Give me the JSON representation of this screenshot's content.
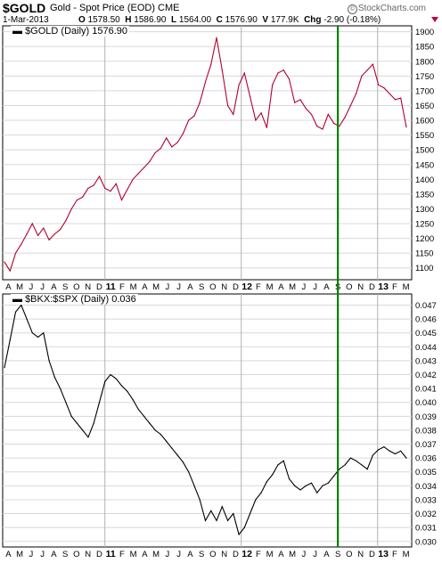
{
  "header": {
    "symbol": "$GOLD",
    "name": "Gold - Spot Price (EOD)",
    "exchange": "CME",
    "date": "1-Mar-2013",
    "open_label": "O",
    "open": "1578.50",
    "high_label": "H",
    "high": "1586.90",
    "low_label": "L",
    "low": "1564.00",
    "close_label": "C",
    "close": "1576.90",
    "volume_label": "V",
    "volume": "177.9K",
    "change_label": "Chg",
    "change": "-2.90 (-0.18%)",
    "brand": "StockCharts.com",
    "down_color": "#c0003c"
  },
  "x_axis": {
    "ticks": [
      "A",
      "M",
      "J",
      "J",
      "A",
      "S",
      "O",
      "N",
      "D",
      "11",
      "F",
      "M",
      "A",
      "M",
      "J",
      "J",
      "A",
      "S",
      "O",
      "N",
      "D",
      "12",
      "F",
      "M",
      "A",
      "M",
      "J",
      "J",
      "A",
      "S",
      "O",
      "N",
      "D",
      "13",
      "F",
      "M"
    ],
    "year_ticks": [
      "11",
      "12",
      "13"
    ]
  },
  "marker": {
    "color": "#008000",
    "month_index": 29
  },
  "chart_data": [
    {
      "type": "line",
      "title": "$GOLD (Daily) 1576.90",
      "series": [
        {
          "name": "$GOLD",
          "color": "#b00030"
        }
      ],
      "x": [
        0,
        1,
        2,
        3,
        4,
        5,
        6,
        7,
        8,
        9,
        10,
        11,
        12,
        13,
        14,
        15,
        16,
        17,
        18,
        19,
        20,
        21,
        22,
        23,
        24,
        25,
        26,
        27,
        28,
        29,
        30,
        31,
        32,
        33,
        34,
        35,
        36,
        37,
        38,
        39,
        40,
        41,
        42,
        43,
        44,
        45,
        46,
        47,
        48,
        49,
        50,
        51,
        52,
        53,
        54,
        55,
        56,
        57,
        58,
        59,
        60,
        61,
        62,
        63,
        64,
        65,
        66,
        67,
        68,
        69,
        70,
        71,
        72
      ],
      "x_unit": "half-months from Apr 2010",
      "values": [
        1120,
        1090,
        1150,
        1180,
        1215,
        1250,
        1210,
        1235,
        1195,
        1215,
        1230,
        1260,
        1300,
        1330,
        1340,
        1370,
        1380,
        1410,
        1370,
        1360,
        1385,
        1330,
        1365,
        1400,
        1420,
        1440,
        1460,
        1490,
        1505,
        1540,
        1510,
        1525,
        1555,
        1600,
        1615,
        1660,
        1730,
        1790,
        1880,
        1770,
        1650,
        1620,
        1720,
        1760,
        1680,
        1600,
        1625,
        1575,
        1720,
        1760,
        1770,
        1740,
        1660,
        1670,
        1640,
        1620,
        1580,
        1570,
        1620,
        1590,
        1580,
        1610,
        1650,
        1690,
        1750,
        1770,
        1790,
        1720,
        1710,
        1690,
        1670,
        1675,
        1577
      ],
      "ylim": [
        1060,
        1920
      ],
      "yticks": [
        1100,
        1150,
        1200,
        1250,
        1300,
        1350,
        1400,
        1450,
        1500,
        1550,
        1600,
        1650,
        1700,
        1750,
        1800,
        1850,
        1900
      ],
      "grid": true
    },
    {
      "type": "line",
      "title": "$BKX:$SPX (Daily) 0.036",
      "series": [
        {
          "name": "$BKX:$SPX",
          "color": "#000000"
        }
      ],
      "x": [
        0,
        1,
        2,
        3,
        4,
        5,
        6,
        7,
        8,
        9,
        10,
        11,
        12,
        13,
        14,
        15,
        16,
        17,
        18,
        19,
        20,
        21,
        22,
        23,
        24,
        25,
        26,
        27,
        28,
        29,
        30,
        31,
        32,
        33,
        34,
        35,
        36,
        37,
        38,
        39,
        40,
        41,
        42,
        43,
        44,
        45,
        46,
        47,
        48,
        49,
        50,
        51,
        52,
        53,
        54,
        55,
        56,
        57,
        58,
        59,
        60,
        61,
        62,
        63,
        64,
        65,
        66,
        67,
        68,
        69,
        70,
        71,
        72
      ],
      "x_unit": "half-months from Apr 2010",
      "values": [
        0.0425,
        0.0445,
        0.0465,
        0.047,
        0.046,
        0.045,
        0.0447,
        0.045,
        0.043,
        0.0418,
        0.041,
        0.04,
        0.039,
        0.0385,
        0.038,
        0.0375,
        0.0385,
        0.04,
        0.0415,
        0.042,
        0.0417,
        0.0412,
        0.0408,
        0.0402,
        0.0395,
        0.039,
        0.0385,
        0.038,
        0.0377,
        0.0372,
        0.0367,
        0.0362,
        0.0357,
        0.035,
        0.034,
        0.033,
        0.0315,
        0.0322,
        0.0315,
        0.0325,
        0.0315,
        0.032,
        0.0305,
        0.031,
        0.032,
        0.033,
        0.0335,
        0.0343,
        0.0348,
        0.0355,
        0.0358,
        0.0345,
        0.034,
        0.0337,
        0.034,
        0.0342,
        0.0335,
        0.034,
        0.0342,
        0.0347,
        0.0352,
        0.0355,
        0.036,
        0.0358,
        0.0355,
        0.0352,
        0.0362,
        0.0366,
        0.0368,
        0.0365,
        0.0363,
        0.0365,
        0.036
      ],
      "ylim": [
        0.0296,
        0.0478
      ],
      "yticks": [
        0.03,
        0.031,
        0.032,
        0.033,
        0.034,
        0.035,
        0.036,
        0.037,
        0.038,
        0.039,
        0.04,
        0.041,
        0.042,
        0.043,
        0.044,
        0.045,
        0.046,
        0.047
      ],
      "ytick_labels": [
        "0.030",
        "0.031",
        "0.032",
        "0.033",
        "0.034",
        "0.035",
        "0.036",
        "0.037",
        "0.038",
        "0.039",
        "0.040",
        "0.041",
        "0.042",
        "0.043",
        "0.044",
        "0.045",
        "0.046",
        "0.047"
      ],
      "grid": true
    }
  ]
}
